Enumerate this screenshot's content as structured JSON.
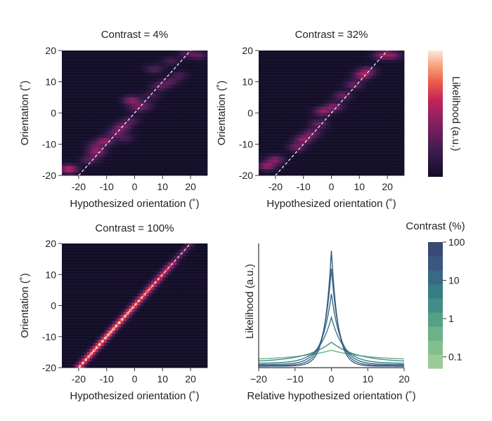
{
  "chart_data": [
    {
      "type": "heatmap",
      "title": "Contrast = 4%",
      "xlabel": "Hypothesized orientation (˚)",
      "ylabel": "Orientation (˚)",
      "xlim": [
        -26,
        26
      ],
      "ylim": [
        -20,
        20
      ],
      "xticks": [
        -20,
        -10,
        0,
        10,
        20
      ],
      "yticks": [
        -20,
        -10,
        0,
        10,
        20
      ],
      "xtick_labels": [
        "-20",
        "-10",
        "0",
        "10",
        "20"
      ],
      "ytick_labels": [
        "-20",
        "-10",
        "0",
        "10",
        "20"
      ],
      "identity_line": true,
      "blobs": [
        {
          "x": -23.5,
          "y": -18.0,
          "v": 0.6
        },
        {
          "x": -16.0,
          "y": -15.0,
          "v": 0.3
        },
        {
          "x": -13.5,
          "y": -12.5,
          "v": 0.45
        },
        {
          "x": -10.5,
          "y": -9.0,
          "v": 0.45
        },
        {
          "x": -14.0,
          "y": -10.5,
          "v": 0.25
        },
        {
          "x": -7.0,
          "y": -6.5,
          "v": 0.3
        },
        {
          "x": -4.5,
          "y": -4.5,
          "v": 0.4
        },
        {
          "x": -3.5,
          "y": -8.0,
          "v": 0.2
        },
        {
          "x": -1.5,
          "y": -2.5,
          "v": 0.25
        },
        {
          "x": 1.0,
          "y": 1.5,
          "v": 0.3
        },
        {
          "x": -1.0,
          "y": 4.0,
          "v": 0.45
        },
        {
          "x": 4.0,
          "y": 2.5,
          "v": 0.2
        },
        {
          "x": 6.0,
          "y": 5.5,
          "v": 0.2
        },
        {
          "x": 9.0,
          "y": 8.5,
          "v": 0.3
        },
        {
          "x": 12.5,
          "y": 10.0,
          "v": 0.25
        },
        {
          "x": 16.0,
          "y": 12.0,
          "v": 0.2
        },
        {
          "x": 7.0,
          "y": 14.0,
          "v": 0.25
        },
        {
          "x": 13.0,
          "y": 16.5,
          "v": 0.2
        },
        {
          "x": 19.0,
          "y": 19.0,
          "v": 0.25
        },
        {
          "x": 23.0,
          "y": 18.5,
          "v": 0.25
        }
      ]
    },
    {
      "type": "heatmap",
      "title": "Contrast = 32%",
      "xlabel": "Hypothesized orientation (˚)",
      "ylabel": "Orientation (˚)",
      "xlim": [
        -26,
        26
      ],
      "ylim": [
        -20,
        20
      ],
      "xticks": [
        -20,
        -10,
        0,
        10,
        20
      ],
      "yticks": [
        -20,
        -10,
        0,
        10,
        20
      ],
      "xtick_labels": [
        "-20",
        "-10",
        "0",
        "10",
        "20"
      ],
      "ytick_labels": [
        "-20",
        "-10",
        "0",
        "10",
        "20"
      ],
      "identity_line": true,
      "blobs": [
        {
          "x": -23.0,
          "y": -17.0,
          "v": 0.45
        },
        {
          "x": -20.0,
          "y": -15.0,
          "v": 0.4
        },
        {
          "x": -12.5,
          "y": -11.0,
          "v": 0.35
        },
        {
          "x": -10.0,
          "y": -8.5,
          "v": 0.45
        },
        {
          "x": -7.0,
          "y": -6.5,
          "v": 0.35
        },
        {
          "x": -4.5,
          "y": -3.5,
          "v": 0.35
        },
        {
          "x": -3.0,
          "y": 0.5,
          "v": 0.45
        },
        {
          "x": 1.0,
          "y": 2.0,
          "v": 0.4
        },
        {
          "x": 4.0,
          "y": 5.5,
          "v": 0.35
        },
        {
          "x": 8.0,
          "y": 9.0,
          "v": 0.35
        },
        {
          "x": 11.0,
          "y": 12.0,
          "v": 0.45
        },
        {
          "x": 13.0,
          "y": 13.5,
          "v": 0.35
        },
        {
          "x": 18.0,
          "y": 18.5,
          "v": 0.4
        },
        {
          "x": 22.0,
          "y": 18.5,
          "v": 0.35
        }
      ]
    },
    {
      "type": "heatmap",
      "title": "Contrast = 100%",
      "xlabel": "Hypothesized orientation (˚)",
      "ylabel": "Orientation (˚)",
      "xlim": [
        -26,
        26
      ],
      "ylim": [
        -20,
        20
      ],
      "xticks": [
        -20,
        -10,
        0,
        10,
        20
      ],
      "yticks": [
        -20,
        -10,
        0,
        10,
        20
      ],
      "xtick_labels": [
        "-20",
        "-10",
        "0",
        "10",
        "20"
      ],
      "ytick_labels": [
        "-20",
        "-10",
        "0",
        "10",
        "20"
      ],
      "identity_line": true,
      "ridge": {
        "width": 1.2,
        "intensity": [
          0.55,
          0.85
        ]
      }
    },
    {
      "type": "line",
      "title": "",
      "xlabel": "Relative hypothesized orientation (˚)",
      "ylabel": "Likelihood (a.u.)",
      "xlim": [
        -20,
        20
      ],
      "xticks": [
        -20,
        -10,
        0,
        10,
        20
      ],
      "xtick_labels": [
        "−20",
        "−10",
        "0",
        "10",
        "20"
      ],
      "series": [
        {
          "contrast": 0.5,
          "peak": 0.08,
          "width": 10,
          "baseline": 0.06
        },
        {
          "contrast": 2,
          "peak": 0.16,
          "width": 7,
          "baseline": 0.045
        },
        {
          "contrast": 4,
          "peak": 0.37,
          "width": 3.4,
          "baseline": 0.035
        },
        {
          "contrast": 8,
          "peak": 0.57,
          "width": 2.6,
          "baseline": 0.025
        },
        {
          "contrast": 16,
          "peak": 0.78,
          "width": 2.1,
          "baseline": 0.018
        },
        {
          "contrast": 32,
          "peak": 0.93,
          "width": 1.8,
          "baseline": 0.012
        }
      ]
    }
  ],
  "colorbars": {
    "likelihood": {
      "label": "Likelihood (a.u.)"
    },
    "contrast": {
      "title": "Contrast (%)",
      "ticks": [
        {
          "label": "100",
          "value": 100
        },
        {
          "label": "10",
          "value": 10
        },
        {
          "label": "1",
          "value": 1
        },
        {
          "label": "0.1",
          "value": 0.1
        }
      ],
      "range": [
        0.05,
        100
      ],
      "colors": [
        "#9dcb98",
        "#84be8e",
        "#6bb189",
        "#55a087",
        "#418e86",
        "#387d85",
        "#396984",
        "#3b5780",
        "#394a73"
      ]
    }
  },
  "colors": {
    "heat_low": "#0f0d24",
    "heat_mid": "#c0235c",
    "heat_high": "#f9dcc3",
    "line": "#ffffff",
    "axis": "#333333"
  }
}
